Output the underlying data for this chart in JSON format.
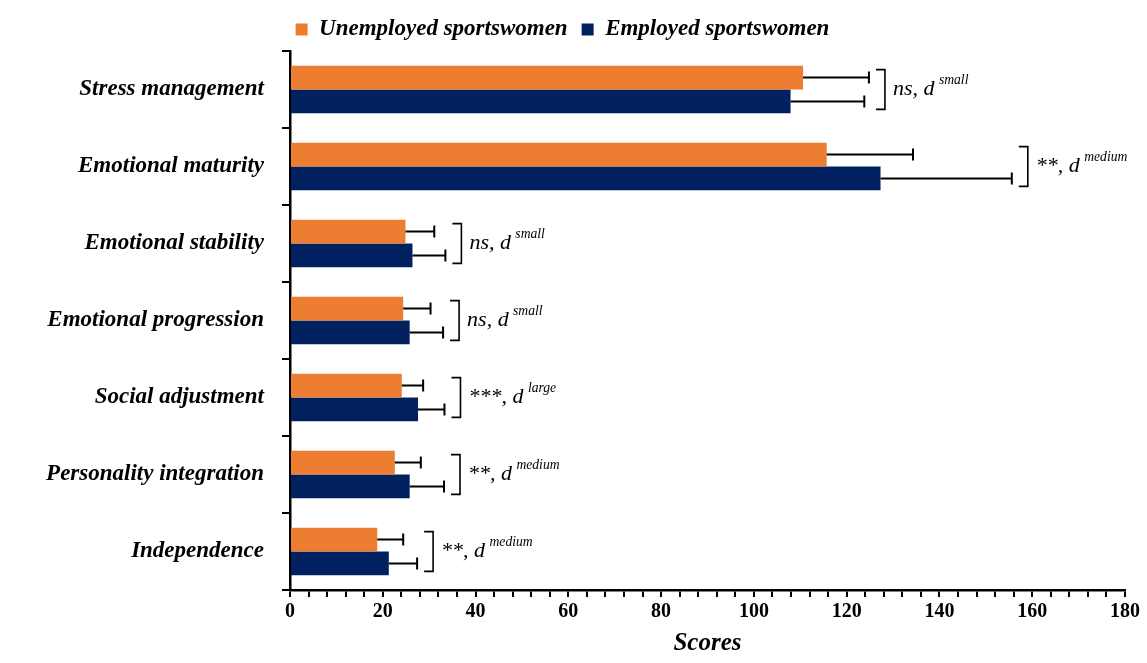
{
  "chart_data": {
    "type": "bar",
    "orientation": "horizontal",
    "xlabel": "Scores",
    "legend": "top",
    "grid": false,
    "categories": [
      "Stress management",
      "Emotional maturity",
      "Emotional stability",
      "Emotional progression",
      "Social adjustment",
      "Personality integration",
      "Independence"
    ],
    "series": [
      {
        "name": "Unemployed sportswomen",
        "color": "#ed7d31",
        "values": [
          110.6,
          115.7,
          24.9,
          24.4,
          24.1,
          22.6,
          18.8
        ],
        "errors": [
          14.2,
          18.6,
          6.2,
          5.9,
          4.6,
          5.6,
          5.6
        ]
      },
      {
        "name": "Employed sportswomen",
        "color": "#002060",
        "values": [
          107.9,
          127.3,
          26.4,
          25.8,
          27.6,
          25.8,
          21.3
        ],
        "errors": [
          15.9,
          28.3,
          7.1,
          7.2,
          5.7,
          7.4,
          6.1
        ]
      }
    ],
    "xlim": [
      0,
      180
    ],
    "xticks": [
      0,
      {
        "value": 4,
        "label": null
      },
      {
        "value": 8,
        "label": null
      },
      {
        "value": 12,
        "label": null
      },
      {
        "value": 16,
        "label": null
      },
      20,
      {
        "value": 24,
        "label": null
      },
      {
        "value": 28,
        "label": null
      },
      {
        "value": 32,
        "label": null
      },
      {
        "value": 36,
        "label": null
      },
      40,
      {
        "value": 44,
        "label": null
      },
      {
        "value": 48,
        "label": null
      },
      {
        "value": 52,
        "label": null
      },
      {
        "value": 56,
        "label": null
      },
      60,
      {
        "value": 64,
        "label": null
      },
      {
        "value": 68,
        "label": null
      },
      {
        "value": 72,
        "label": null
      },
      {
        "value": 76,
        "label": null
      },
      80,
      {
        "value": 84,
        "label": null
      },
      {
        "value": 88,
        "label": null
      },
      {
        "value": 92,
        "label": null
      },
      {
        "value": 96,
        "label": null
      },
      100,
      {
        "value": 104,
        "label": null
      },
      {
        "value": 108,
        "label": null
      },
      {
        "value": 112,
        "label": null
      },
      {
        "value": 116,
        "label": null
      },
      120,
      {
        "value": 124,
        "label": null
      },
      {
        "value": 128,
        "label": null
      },
      {
        "value": 132,
        "label": null
      },
      {
        "value": 136,
        "label": null
      },
      140,
      {
        "value": 144,
        "label": null
      },
      {
        "value": 148,
        "label": null
      },
      {
        "value": 152,
        "label": null
      },
      {
        "value": 156,
        "label": null
      },
      160,
      {
        "value": 164,
        "label": null
      },
      {
        "value": 168,
        "label": null
      },
      {
        "value": 172,
        "label": null
      },
      {
        "value": 176,
        "label": null
      },
      180
    ],
    "annotations": [
      "ns, d$^{small}$",
      "**, d$^{medium}$",
      "ns, d$^{small}$",
      "ns, d$^{small}$",
      "***, d$^{large}$",
      "**, d$^{medium}$",
      "**, d$^{medium}$"
    ]
  }
}
